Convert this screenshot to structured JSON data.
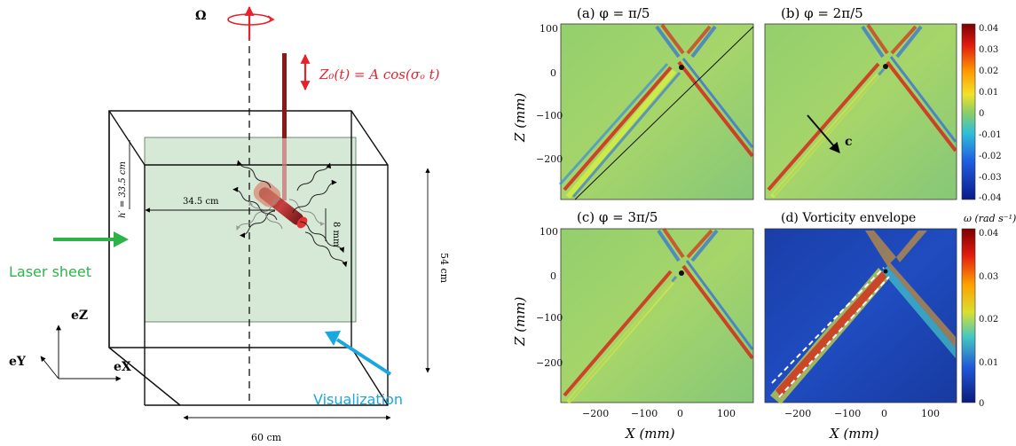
{
  "left": {
    "omega_label": "Ω",
    "z0_label": "Z₀(t) = A cos(σₒ t)",
    "h_label": "h′ = 33.5 cm",
    "width_label": "34.5 cm",
    "rod_label": "8 mm",
    "height_label": "54 cm",
    "base_label": "60 cm",
    "laser_label": "Laser sheet",
    "visual_label": "Visualization",
    "ez": "eZ",
    "ey": "eY",
    "ex": "eX",
    "colors": {
      "laser": "#2db34a",
      "visual": "#19a7e0",
      "accent": "#e8202a",
      "tank": "#cfe6cf"
    }
  },
  "panels": [
    {
      "id": "a",
      "title": "(a)  φ = π/5"
    },
    {
      "id": "b",
      "title": "(b)  φ = 2π/5"
    },
    {
      "id": "c",
      "title": "(c)  φ = 3π/5"
    },
    {
      "id": "d",
      "title": "(d)  Vorticity envelope"
    }
  ],
  "axes": {
    "xlabel": "X  (mm)",
    "ylabel": "Z  (mm)",
    "xticks": [
      "−200",
      "−100",
      "0",
      "100"
    ],
    "yticks": [
      "100",
      "0",
      "−100",
      "−200"
    ],
    "c_label": "c"
  },
  "colorbar_top": {
    "ticks": [
      "0.04",
      "0.03",
      "0.02",
      "0.01",
      "0",
      "-0.01",
      "-0.02",
      "-0.03",
      "-0.04"
    ]
  },
  "colorbar_bottom": {
    "title": "ω  (rad s⁻¹)",
    "ticks": [
      "0.04",
      "0.03",
      "0.02",
      "0.01",
      "0"
    ]
  }
}
